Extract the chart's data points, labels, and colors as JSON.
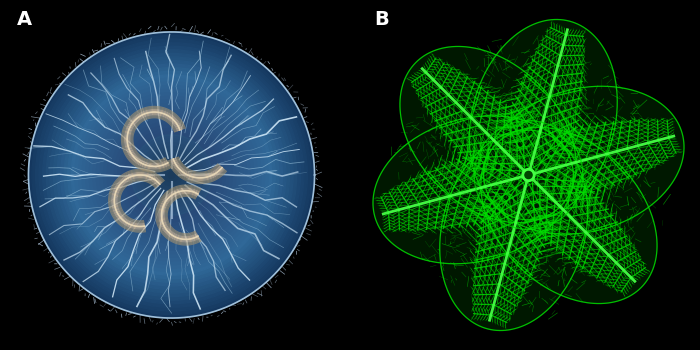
{
  "background_color": "#000000",
  "label_A": "A",
  "label_B": "B",
  "label_color": "#ffffff",
  "label_fontsize": 14,
  "label_fontweight": "bold",
  "jelly_body_color": "#1c3a58",
  "jelly_body_light": "#2a5070",
  "jelly_vein_color": "#a0c8e0",
  "jelly_vein_bright": "#d0e8f8",
  "jelly_gonad_color": "#c8b090",
  "jelly_gonad_inner": "#e8d0b0",
  "retina_vessel_color": "#00dd00",
  "retina_vessel_bright": "#44ff44",
  "retina_fill": "#001800",
  "fig_width": 7.0,
  "fig_height": 3.5,
  "dpi": 100
}
